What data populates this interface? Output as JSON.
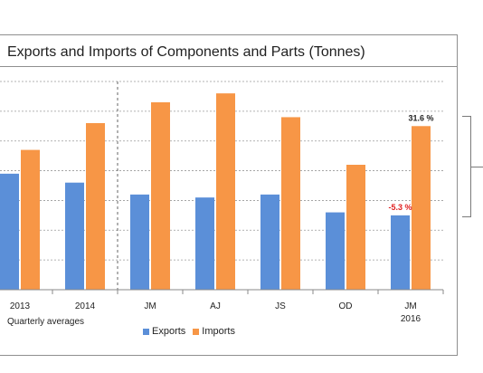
{
  "title": "Exports and Imports of Components and Parts (Tonnes)",
  "legend": {
    "exports": "Exports",
    "imports": "Imports",
    "exports_color": "#5b8fd8",
    "imports_color": "#f79646"
  },
  "quarterly_note": "Quarterly averages",
  "chart_data": {
    "type": "bar",
    "title": "Exports and Imports of Components and Parts (Tonnes)",
    "categories": [
      "2013",
      "2014",
      "JM",
      "AJ",
      "JS",
      "OD",
      "JM"
    ],
    "category_sublabels": [
      "",
      "",
      "",
      "",
      "",
      "",
      "2016"
    ],
    "ylim": [
      0,
      7
    ],
    "grid": true,
    "legend_position": "bottom",
    "series": [
      {
        "name": "Exports",
        "color": "#5b8fd8",
        "values": [
          3.9,
          3.6,
          3.2,
          3.1,
          3.2,
          2.6,
          2.5
        ]
      },
      {
        "name": "Imports",
        "color": "#f79646",
        "values": [
          4.7,
          5.6,
          6.3,
          6.6,
          5.8,
          4.2,
          5.5
        ]
      }
    ],
    "annotations": [
      {
        "text": "31.6 %",
        "series": "Imports",
        "category_index": 6,
        "color": "#1f1f1f"
      },
      {
        "text": "-5.3 %",
        "series": "Exports",
        "category_index": 6,
        "color": "#e02020"
      }
    ],
    "separator_after_index": 1
  }
}
